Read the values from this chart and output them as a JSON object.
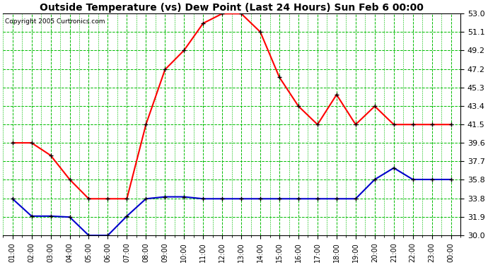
{
  "title": "Outside Temperature (vs) Dew Point (Last 24 Hours) Sun Feb 6 00:00",
  "copyright": "Copyright 2005 Curtronics.com",
  "background_color": "#ffffff",
  "plot_bg_color": "#ffffff",
  "grid_color": "#00bb00",
  "x_labels": [
    "01:00",
    "02:00",
    "03:00",
    "04:00",
    "05:00",
    "06:00",
    "07:00",
    "08:00",
    "09:00",
    "10:00",
    "11:00",
    "12:00",
    "13:00",
    "14:00",
    "15:00",
    "16:00",
    "17:00",
    "18:00",
    "19:00",
    "20:00",
    "21:00",
    "22:00",
    "23:00",
    "00:00"
  ],
  "ylim": [
    30.0,
    53.0
  ],
  "yticks": [
    30.0,
    31.9,
    33.8,
    35.8,
    37.7,
    39.6,
    41.5,
    43.4,
    45.3,
    47.2,
    49.2,
    51.1,
    53.0
  ],
  "temp_color": "#ff0000",
  "dew_color": "#0000cc",
  "temp_values": [
    39.6,
    39.6,
    38.3,
    35.8,
    33.8,
    33.8,
    33.8,
    41.5,
    47.2,
    49.2,
    52.0,
    53.0,
    53.0,
    51.1,
    46.4,
    43.4,
    41.5,
    44.6,
    41.5,
    43.4,
    41.5,
    41.5,
    41.5,
    41.5
  ],
  "dew_values": [
    33.8,
    32.0,
    32.0,
    31.9,
    30.0,
    30.0,
    32.0,
    33.8,
    34.0,
    34.0,
    33.8,
    33.8,
    33.8,
    33.8,
    33.8,
    33.8,
    33.8,
    33.8,
    33.8,
    35.8,
    37.0,
    35.8,
    35.8,
    35.8
  ]
}
